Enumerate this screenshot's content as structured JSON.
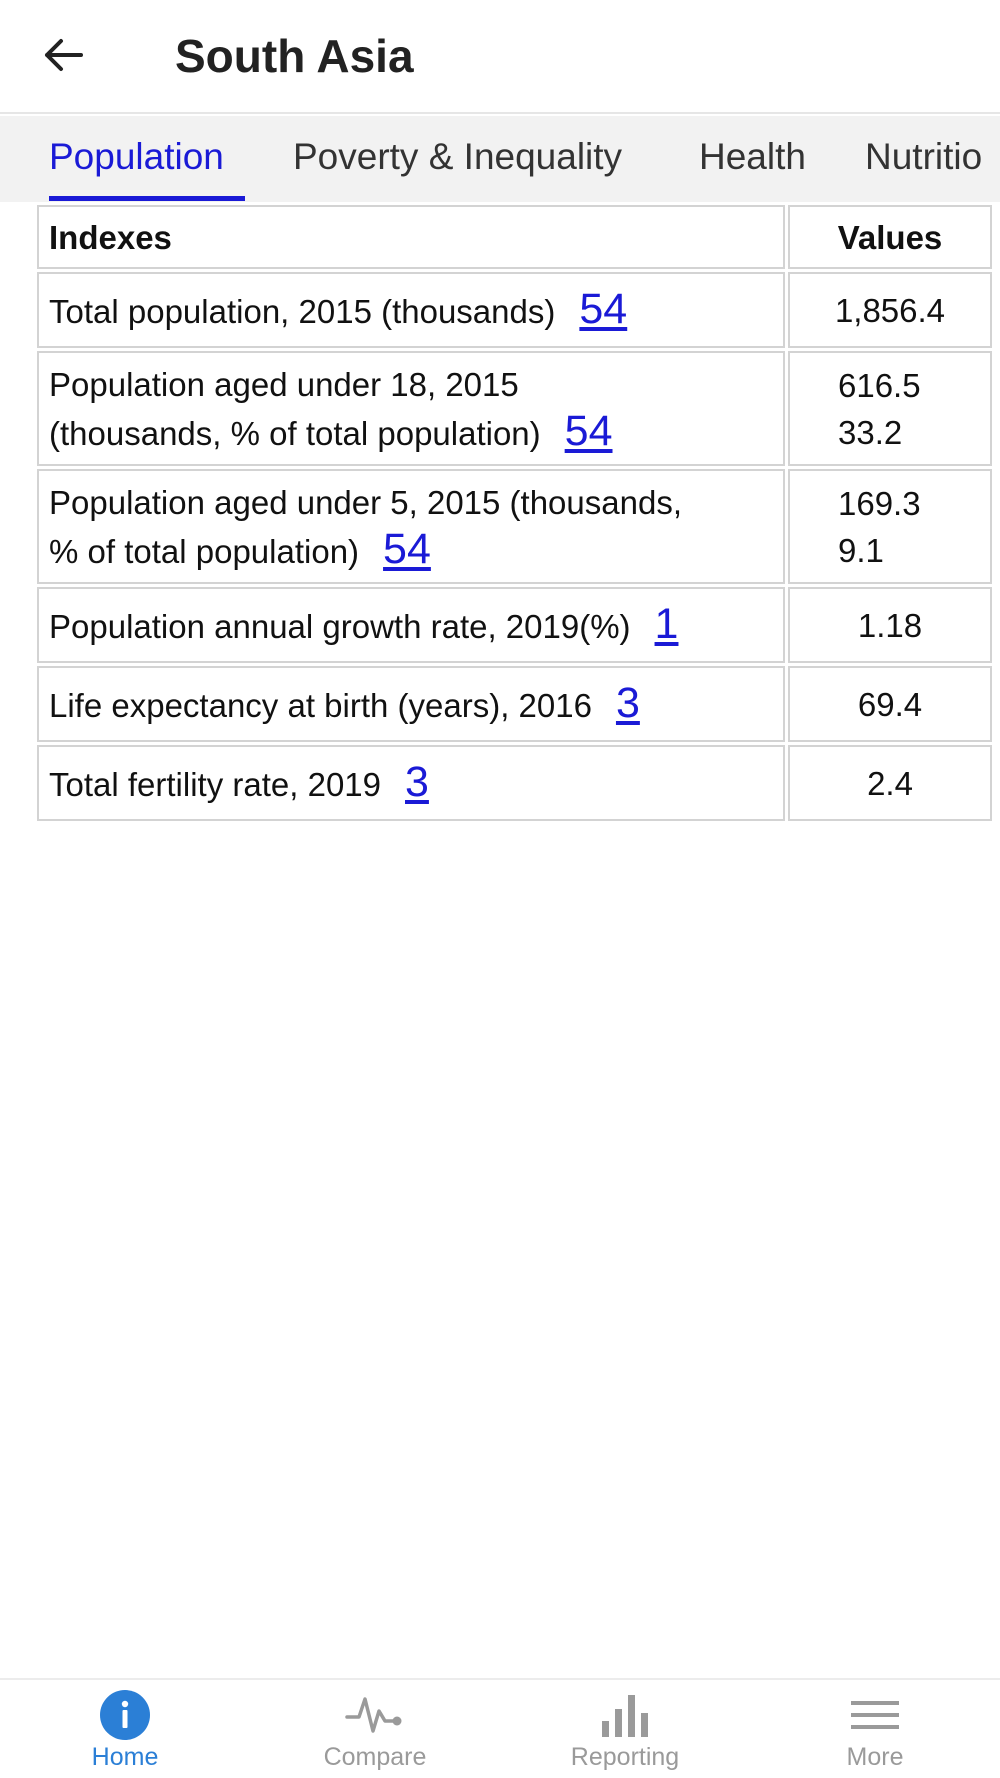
{
  "header": {
    "title": "South Asia"
  },
  "tabs": [
    {
      "label": "Population",
      "active": true
    },
    {
      "label": "Poverty & Inequality",
      "active": false
    },
    {
      "label": "Health",
      "active": false
    },
    {
      "label": "Nutritio",
      "active": false
    }
  ],
  "table": {
    "headers": {
      "index": "Indexes",
      "value": "Values"
    },
    "rows": [
      {
        "index_line1": "Total population, 2015 (thousands)",
        "index_line2": "",
        "ref": "54",
        "value1": "1,856.4",
        "value2": ""
      },
      {
        "index_line1": "Population aged under 18, 2015",
        "index_line2": "(thousands, % of total population)",
        "ref": "54",
        "value1": "616.5",
        "value2": "33.2"
      },
      {
        "index_line1": "Population aged under 5, 2015 (thousands,",
        "index_line2": "% of total population)",
        "ref": "54",
        "value1": "169.3",
        "value2": "9.1"
      },
      {
        "index_line1": "Population annual growth rate, 2019(%)",
        "index_line2": "",
        "ref": "1",
        "value1": "1.18",
        "value2": ""
      },
      {
        "index_line1": "Life expectancy at birth (years), 2016",
        "index_line2": "",
        "ref": "3",
        "value1": "69.4",
        "value2": ""
      },
      {
        "index_line1": "Total fertility rate, 2019",
        "index_line2": "",
        "ref": "3",
        "value1": "2.4",
        "value2": ""
      }
    ]
  },
  "bottom_nav": [
    {
      "label": "Home",
      "icon": "info-icon",
      "active": true
    },
    {
      "label": "Compare",
      "icon": "pulse-icon",
      "active": false
    },
    {
      "label": "Reporting",
      "icon": "bar-chart-icon",
      "active": false
    },
    {
      "label": "More",
      "icon": "menu-icon",
      "active": false
    }
  ],
  "colors": {
    "accent": "#1a1ad6",
    "nav_active": "#2b7fd6",
    "nav_inactive": "#9a9a9a"
  }
}
